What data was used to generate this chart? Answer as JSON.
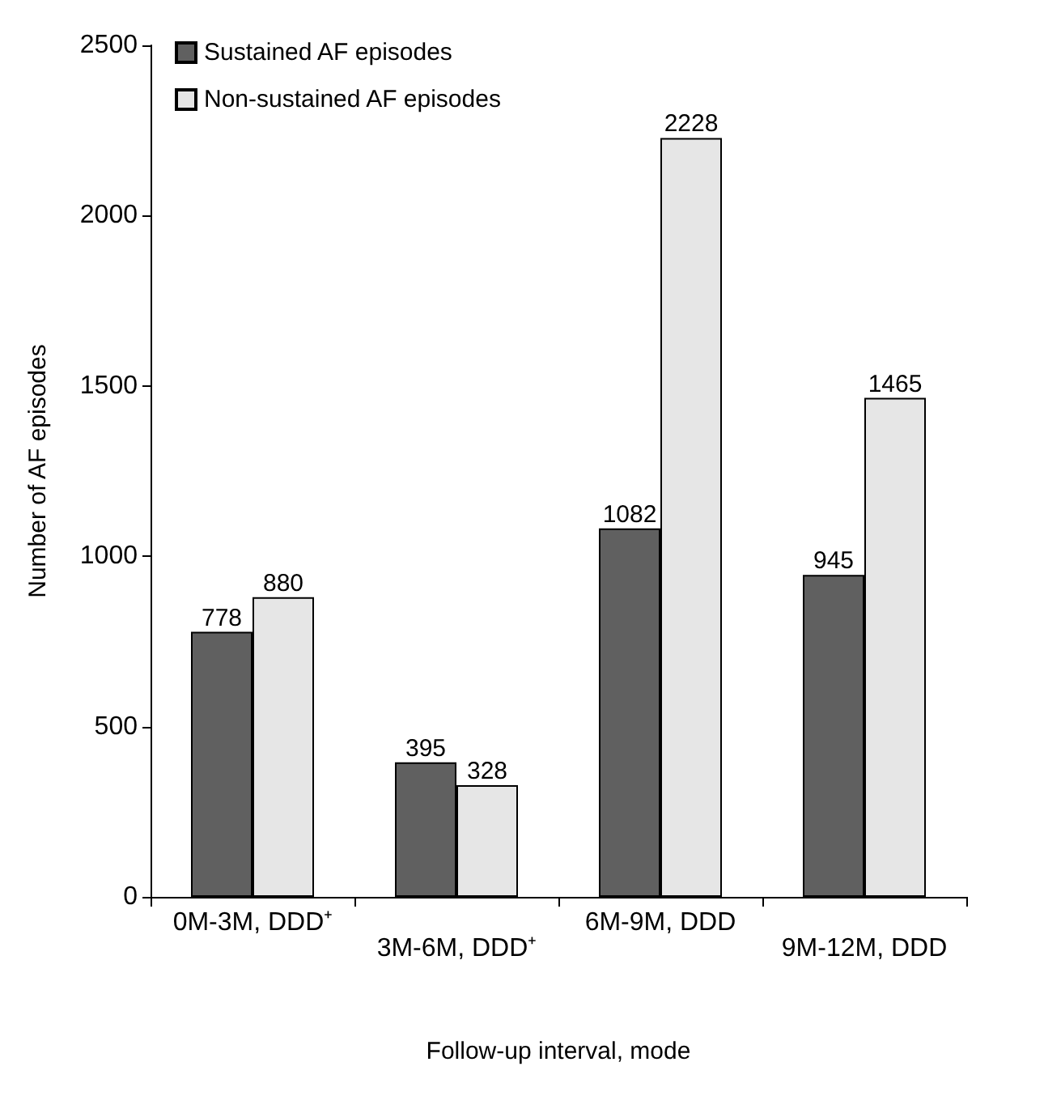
{
  "chart_data": {
    "type": "bar",
    "xlabel": "Follow-up interval, mode",
    "ylabel": "Number of AF episodes",
    "categories": [
      "0M-3M, DDD⁺",
      "3M-6M, DDD⁺",
      "6M-9M, DDD",
      "9M-12M, DDD"
    ],
    "series": [
      {
        "name": "Sustained AF episodes",
        "color": "#606060",
        "values": [
          778,
          395,
          1082,
          945
        ]
      },
      {
        "name": "Non-sustained AF episodes",
        "color": "#e6e6e6",
        "values": [
          880,
          328,
          2228,
          1465
        ]
      }
    ],
    "ylim": [
      0,
      2500
    ],
    "yticks": [
      0,
      500,
      1000,
      1500,
      2000,
      2500
    ],
    "grid": false,
    "legend": "top left",
    "data_labels": true
  }
}
